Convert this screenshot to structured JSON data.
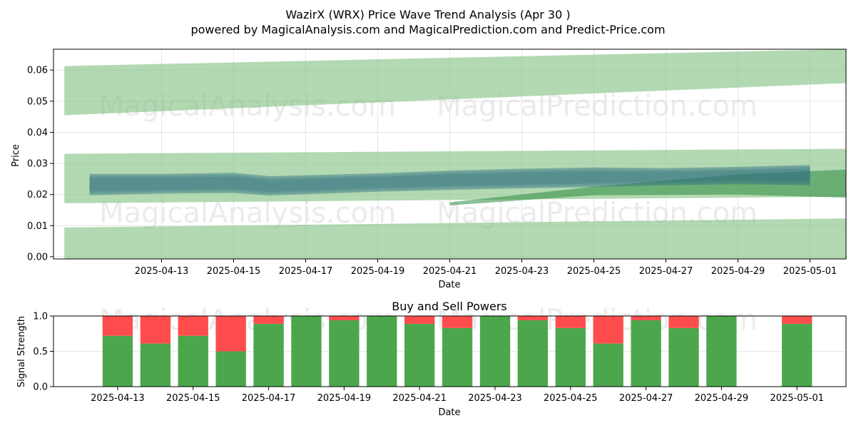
{
  "chart_data": [
    {
      "type": "area",
      "title": "WazirX (WRX) Price Wave Trend Analysis (Apr 30 )",
      "subtitle": "powered by MagicalAnalysis.com and MagicalPrediction.com and Predict-Price.com",
      "xlabel": "Date",
      "ylabel": "Price",
      "x_range": [
        "2025-04-10",
        "2025-05-02"
      ],
      "ylim": [
        -0.0007,
        0.0667
      ],
      "x_ticks": [
        "2025-04-13",
        "2025-04-15",
        "2025-04-17",
        "2025-04-19",
        "2025-04-21",
        "2025-04-23",
        "2025-04-25",
        "2025-04-27",
        "2025-04-29",
        "2025-05-01"
      ],
      "y_ticks": [
        "0.00",
        "0.01",
        "0.02",
        "0.03",
        "0.04",
        "0.05",
        "0.06"
      ],
      "grid": true,
      "watermarks": [
        "MagicalAnalysis.com",
        "MagicalPrediction.com"
      ],
      "bands": [
        {
          "x": [
            "2025-04-10.3",
            "2025-05-02"
          ],
          "upper": [
            0.0613,
            0.0667
          ],
          "lower": [
            0.0455,
            0.0558
          ]
        },
        {
          "x": [
            "2025-04-10.3",
            "2025-05-02"
          ],
          "upper": [
            0.0331,
            0.0347
          ],
          "lower": [
            0.0172,
            0.0193
          ]
        },
        {
          "x": [
            "2025-04-10.3",
            "2025-05-02"
          ],
          "upper": [
            0.0094,
            0.0123
          ],
          "lower": [
            -0.0007,
            -0.0007
          ]
        }
      ],
      "price_band": {
        "dates": [
          "2025-04-11",
          "2025-04-13",
          "2025-04-15",
          "2025-04-16",
          "2025-04-17",
          "2025-04-19",
          "2025-04-21",
          "2025-04-23",
          "2025-04-25",
          "2025-04-27",
          "2025-04-29",
          "2025-05-01"
        ],
        "upper": [
          0.0266,
          0.0266,
          0.027,
          0.0259,
          0.0262,
          0.0268,
          0.0277,
          0.0283,
          0.0287,
          0.0285,
          0.0289,
          0.0295
        ],
        "lower": [
          0.0198,
          0.0203,
          0.0205,
          0.0197,
          0.0201,
          0.0209,
          0.0215,
          0.022,
          0.0224,
          0.023,
          0.0233,
          0.023
        ]
      },
      "trend_band": {
        "dates": [
          "2025-04-21",
          "2025-04-25",
          "2025-04-29",
          "2025-05-02"
        ],
        "upper": [
          0.0175,
          0.0225,
          0.0265,
          0.028
        ],
        "lower": [
          0.0165,
          0.0198,
          0.02,
          0.019
        ]
      },
      "colors": {
        "band": "#7fbf7f",
        "price": "#2e6f80",
        "trend": "#2e8b3f"
      }
    },
    {
      "type": "bar",
      "title": "Buy and Sell Powers",
      "xlabel": "Date",
      "ylabel": "Signal Strength",
      "ylim": [
        0,
        1
      ],
      "y_ticks": [
        "0.0",
        "0.5",
        "1.0"
      ],
      "x_ticks": [
        "2025-04-13",
        "2025-04-15",
        "2025-04-17",
        "2025-04-19",
        "2025-04-21",
        "2025-04-23",
        "2025-04-25",
        "2025-04-27",
        "2025-04-29",
        "2025-05-01"
      ],
      "dates": [
        "2025-04-13",
        "2025-04-14",
        "2025-04-15",
        "2025-04-16",
        "2025-04-17",
        "2025-04-18",
        "2025-04-19",
        "2025-04-20",
        "2025-04-21",
        "2025-04-22",
        "2025-04-23",
        "2025-04-24",
        "2025-04-25",
        "2025-04-26",
        "2025-04-27",
        "2025-04-28",
        "2025-04-29",
        "2025-05-01"
      ],
      "series": [
        {
          "values": [
            0.72,
            0.61,
            0.72,
            0.5,
            0.89,
            1.0,
            0.94,
            1.0,
            0.89,
            0.83,
            1.0,
            0.94,
            0.83,
            0.61,
            0.94,
            0.83,
            1.0,
            0.89
          ]
        },
        {
          "values": [
            0.28,
            0.39,
            0.28,
            0.5,
            0.11,
            0.0,
            0.06,
            0.0,
            0.11,
            0.17,
            0.0,
            0.06,
            0.17,
            0.39,
            0.06,
            0.17,
            0.0,
            0.11
          ]
        }
      ],
      "colors": {
        "buy": "#4ca64c",
        "sell": "#ff4d4d"
      }
    }
  ]
}
